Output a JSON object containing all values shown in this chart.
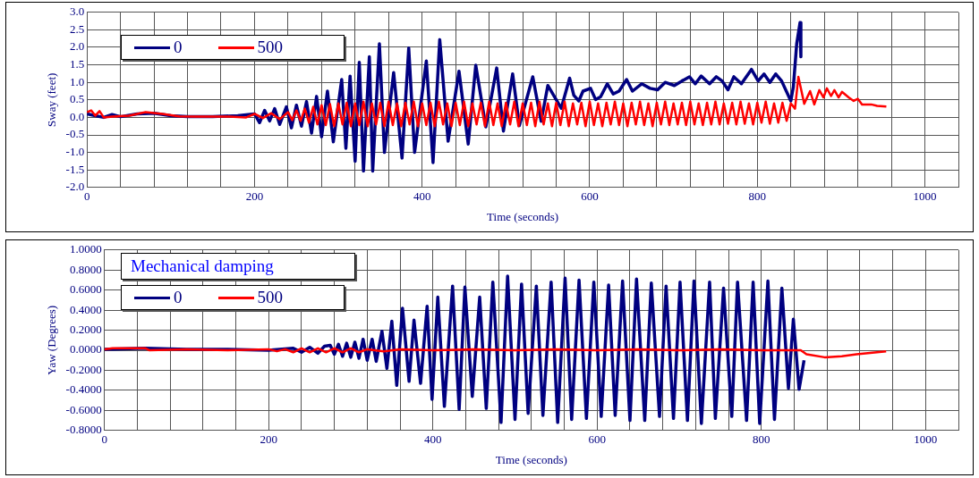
{
  "chart_data": [
    {
      "type": "line",
      "xlabel": "Time (seconds)",
      "ylabel": "Sway (feet)",
      "xlim": [
        0,
        1040
      ],
      "ylim": [
        -2,
        3
      ],
      "xticks": [
        0,
        {
          "value": 40,
          "label": null
        },
        {
          "value": 80,
          "label": null
        },
        {
          "value": 120,
          "label": null
        },
        {
          "value": 160,
          "label": null
        },
        200,
        {
          "value": 240,
          "label": null
        },
        {
          "value": 280,
          "label": null
        },
        {
          "value": 320,
          "label": null
        },
        {
          "value": 360,
          "label": null
        },
        400,
        {
          "value": 440,
          "label": null
        },
        {
          "value": 480,
          "label": null
        },
        {
          "value": 520,
          "label": null
        },
        {
          "value": 560,
          "label": null
        },
        600,
        {
          "value": 640,
          "label": null
        },
        {
          "value": 680,
          "label": null
        },
        {
          "value": 720,
          "label": null
        },
        {
          "value": 760,
          "label": null
        },
        800,
        {
          "value": 840,
          "label": null
        },
        {
          "value": 880,
          "label": null
        },
        {
          "value": 920,
          "label": null
        },
        {
          "value": 960,
          "label": null
        },
        1000,
        {
          "value": 1040,
          "label": null
        }
      ],
      "yticks": [
        {
          "value": -2,
          "label": "-2.0"
        },
        {
          "value": -1.5,
          "label": "-1.5"
        },
        {
          "value": -1,
          "label": "-1.0"
        },
        {
          "value": -0.5,
          "label": "-0.5"
        },
        {
          "value": 0,
          "label": "0.0"
        },
        {
          "value": 0.5,
          "label": "0.5"
        },
        {
          "value": 1,
          "label": "1.0"
        },
        {
          "value": 1.5,
          "label": "1.5"
        },
        {
          "value": 2,
          "label": "2.0"
        },
        {
          "value": 2.5,
          "label": "2.5"
        },
        {
          "value": 3,
          "label": "3.0"
        }
      ],
      "grid": true,
      "legend": "top left",
      "marker": "none",
      "line_style": "solid",
      "series": [
        {
          "name": "0",
          "color": "#000080",
          "x": [
            0,
            10,
            20,
            30,
            40,
            60,
            80,
            100,
            120,
            150,
            180,
            200,
            206,
            212,
            218,
            224,
            230,
            238,
            244,
            250,
            256,
            262,
            268,
            274,
            280,
            287,
            294,
            304,
            309,
            314,
            320,
            325,
            330,
            337,
            341,
            349,
            355,
            366,
            376,
            384,
            391,
            405,
            413,
            421,
            431,
            444,
            455,
            464,
            476,
            489,
            497,
            508,
            516,
            532,
            542,
            550,
            566,
            576,
            581,
            587,
            592,
            601,
            607,
            613,
            621,
            628,
            635,
            644,
            651,
            662,
            672,
            681,
            690,
            701,
            710,
            719,
            726,
            733,
            743,
            751,
            758,
            765,
            772,
            781,
            793,
            801,
            808,
            815,
            822,
            829,
            840,
            843,
            847,
            851,
            852
          ],
          "values": [
            0.1,
            0.05,
            0.0,
            0.08,
            0.02,
            0.1,
            0.12,
            0.05,
            0.02,
            0.02,
            0.05,
            0.1,
            -0.15,
            0.2,
            -0.1,
            0.25,
            -0.2,
            0.3,
            -0.3,
            0.35,
            -0.25,
            0.45,
            -0.45,
            0.6,
            -0.55,
            0.75,
            -0.7,
            1.08,
            -0.88,
            1.18,
            -1.25,
            1.57,
            -1.53,
            1.73,
            -1.53,
            2.1,
            -1.0,
            1.28,
            -1.16,
            1.98,
            -1.0,
            1.61,
            -1.29,
            2.22,
            -0.68,
            1.32,
            -0.76,
            1.49,
            -0.27,
            1.41,
            -0.39,
            1.24,
            -0.23,
            1.16,
            -0.11,
            0.91,
            0.26,
            1.12,
            0.63,
            0.47,
            0.75,
            0.83,
            0.51,
            0.59,
            0.96,
            0.67,
            0.75,
            1.08,
            0.75,
            0.96,
            0.83,
            0.79,
            1.0,
            0.91,
            1.04,
            1.16,
            0.96,
            1.18,
            0.96,
            1.16,
            1.04,
            0.79,
            1.16,
            0.96,
            1.37,
            1.04,
            1.24,
            1.0,
            1.24,
            1.04,
            0.47,
            0.87,
            2.1,
            2.71,
            1.73
          ]
        },
        {
          "name": "500",
          "color": "#ff0000",
          "x": [
            0,
            5,
            10,
            15,
            20,
            30,
            50,
            70,
            90,
            110,
            130,
            150,
            170,
            190,
            200,
            210,
            220,
            230,
            240,
            245,
            250,
            255,
            260,
            265,
            270,
            275,
            280,
            285,
            290,
            295,
            300,
            305,
            310,
            315,
            320,
            325,
            330,
            335,
            340,
            345,
            350,
            355,
            360,
            365,
            370,
            375,
            380,
            385,
            390,
            395,
            400,
            405,
            410,
            415,
            420,
            425,
            430,
            435,
            440,
            445,
            450,
            455,
            460,
            465,
            470,
            475,
            480,
            485,
            490,
            495,
            500,
            505,
            510,
            515,
            520,
            525,
            530,
            535,
            540,
            545,
            550,
            555,
            560,
            565,
            570,
            575,
            580,
            585,
            590,
            595,
            600,
            605,
            610,
            615,
            620,
            625,
            630,
            635,
            640,
            645,
            650,
            655,
            660,
            665,
            670,
            675,
            680,
            685,
            690,
            695,
            700,
            705,
            710,
            715,
            720,
            725,
            730,
            735,
            740,
            745,
            750,
            755,
            760,
            765,
            770,
            775,
            780,
            785,
            790,
            795,
            800,
            805,
            810,
            815,
            820,
            825,
            830,
            835,
            840,
            845,
            849,
            856,
            863,
            868,
            874,
            879,
            883,
            888,
            892,
            897,
            901,
            909,
            915,
            920,
            925,
            936,
            943,
            954
          ],
          "values": [
            0.15,
            0.2,
            0.05,
            0.18,
            0.0,
            0.02,
            0.05,
            0.15,
            0.1,
            0.03,
            0.02,
            0.02,
            0.02,
            0.0,
            0.1,
            -0.02,
            0.12,
            -0.05,
            0.15,
            -0.08,
            0.2,
            -0.1,
            0.25,
            -0.15,
            0.3,
            -0.2,
            0.35,
            -0.22,
            0.38,
            -0.25,
            0.4,
            -0.2,
            0.42,
            -0.25,
            0.4,
            -0.22,
            0.45,
            -0.25,
            0.4,
            -0.2,
            0.42,
            -0.25,
            0.45,
            -0.22,
            0.4,
            -0.25,
            0.42,
            -0.2,
            0.45,
            -0.25,
            0.4,
            -0.22,
            0.42,
            -0.25,
            0.45,
            -0.2,
            0.4,
            -0.25,
            0.42,
            -0.22,
            0.45,
            -0.25,
            0.4,
            -0.2,
            0.42,
            -0.25,
            0.45,
            -0.22,
            0.4,
            -0.25,
            0.42,
            -0.2,
            0.45,
            -0.25,
            0.4,
            -0.22,
            0.42,
            -0.25,
            0.45,
            -0.2,
            0.4,
            -0.25,
            0.42,
            -0.22,
            0.45,
            -0.25,
            0.4,
            -0.2,
            0.42,
            -0.25,
            0.45,
            -0.22,
            0.4,
            -0.25,
            0.42,
            -0.2,
            0.45,
            -0.22,
            0.4,
            -0.25,
            0.42,
            -0.2,
            0.45,
            -0.22,
            0.4,
            -0.25,
            0.42,
            -0.2,
            0.45,
            -0.22,
            0.4,
            -0.2,
            0.42,
            -0.22,
            0.45,
            -0.2,
            0.4,
            -0.22,
            0.42,
            -0.2,
            0.45,
            -0.2,
            0.4,
            -0.18,
            0.42,
            -0.2,
            0.45,
            -0.18,
            0.4,
            -0.2,
            0.42,
            -0.15,
            0.45,
            -0.18,
            0.4,
            -0.15,
            0.42,
            -0.1,
            0.4,
            0.25,
            1.16,
            0.39,
            0.75,
            0.37,
            0.78,
            0.57,
            0.83,
            0.61,
            0.78,
            0.57,
            0.73,
            0.57,
            0.47,
            0.53,
            0.37,
            0.37,
            0.33,
            0.31
          ]
        }
      ]
    },
    {
      "type": "line",
      "xlabel": "Time (seconds)",
      "ylabel": "Yaw (Degrees)",
      "legend_title": "Mechanical damping",
      "xlim": [
        0,
        1040
      ],
      "ylim": [
        -0.8,
        1
      ],
      "xticks": [
        0,
        {
          "value": 40,
          "label": null
        },
        {
          "value": 80,
          "label": null
        },
        {
          "value": 120,
          "label": null
        },
        {
          "value": 160,
          "label": null
        },
        200,
        {
          "value": 240,
          "label": null
        },
        {
          "value": 280,
          "label": null
        },
        {
          "value": 320,
          "label": null
        },
        {
          "value": 360,
          "label": null
        },
        400,
        {
          "value": 440,
          "label": null
        },
        {
          "value": 480,
          "label": null
        },
        {
          "value": 520,
          "label": null
        },
        {
          "value": 560,
          "label": null
        },
        600,
        {
          "value": 640,
          "label": null
        },
        {
          "value": 680,
          "label": null
        },
        {
          "value": 720,
          "label": null
        },
        {
          "value": 760,
          "label": null
        },
        800,
        {
          "value": 840,
          "label": null
        },
        {
          "value": 880,
          "label": null
        },
        {
          "value": 920,
          "label": null
        },
        {
          "value": 960,
          "label": null
        },
        1000,
        {
          "value": 1040,
          "label": null
        }
      ],
      "yticks": [
        {
          "value": -0.8,
          "label": "-0.8000"
        },
        {
          "value": -0.6,
          "label": "-0.6000"
        },
        {
          "value": -0.4,
          "label": "-0.4000"
        },
        {
          "value": -0.2,
          "label": "-0.2000"
        },
        {
          "value": 0,
          "label": "0.0000"
        },
        {
          "value": 0.2,
          "label": "0.2000"
        },
        {
          "value": 0.4,
          "label": "0.4000"
        },
        {
          "value": 0.6,
          "label": "0.6000"
        },
        {
          "value": 0.8,
          "label": "0.8000"
        },
        {
          "value": 1,
          "label": "1.0000"
        }
      ],
      "grid": true,
      "legend": "top left",
      "marker": "none",
      "line_style": "solid",
      "series": [
        {
          "name": "0",
          "color": "#000080",
          "x": [
            0,
            50,
            100,
            150,
            200,
            230,
            240,
            250,
            260,
            268,
            275,
            280,
            285,
            290,
            295,
            300,
            305,
            310,
            315,
            320,
            326,
            331,
            338,
            344,
            350,
            356,
            363,
            371,
            377,
            385,
            393,
            399,
            406,
            414,
            424,
            432,
            439,
            448,
            457,
            465,
            473,
            483,
            491,
            500,
            508,
            516,
            526,
            534,
            544,
            552,
            561,
            569,
            578,
            587,
            596,
            605,
            614,
            622,
            631,
            640,
            648,
            658,
            666,
            676,
            684,
            693,
            701,
            710,
            718,
            727,
            737,
            744,
            754,
            764,
            771,
            782,
            790,
            798,
            808,
            816,
            825,
            833,
            839,
            846,
            852
          ],
          "values": [
            0.01,
            0.02,
            0.01,
            0.01,
            0.0,
            0.02,
            -0.02,
            0.03,
            -0.03,
            0.04,
            0.05,
            -0.04,
            0.06,
            -0.06,
            0.07,
            -0.07,
            0.08,
            -0.08,
            0.11,
            -0.1,
            0.11,
            -0.11,
            0.19,
            -0.18,
            0.29,
            -0.35,
            0.42,
            -0.31,
            0.3,
            -0.33,
            0.44,
            -0.49,
            0.53,
            -0.56,
            0.64,
            -0.59,
            0.63,
            -0.46,
            0.53,
            -0.58,
            0.68,
            -0.72,
            0.74,
            -0.69,
            0.66,
            -0.63,
            0.64,
            -0.65,
            0.68,
            -0.72,
            0.72,
            -0.69,
            0.7,
            -0.68,
            0.68,
            -0.66,
            0.65,
            -0.65,
            0.69,
            -0.7,
            0.71,
            -0.7,
            0.67,
            -0.66,
            0.64,
            -0.68,
            0.68,
            -0.7,
            0.69,
            -0.73,
            0.68,
            -0.68,
            0.62,
            -0.66,
            0.68,
            -0.7,
            0.68,
            -0.73,
            0.69,
            -0.69,
            0.62,
            -0.38,
            0.31,
            -0.39,
            -0.1
          ]
        },
        {
          "name": "500",
          "color": "#ff0000",
          "x": [
            0,
            10,
            50,
            55,
            100,
            150,
            200,
            210,
            220,
            230,
            240,
            250,
            260,
            270,
            280,
            290,
            300,
            310,
            320,
            340,
            360,
            400,
            450,
            500,
            550,
            600,
            650,
            700,
            750,
            800,
            840,
            848,
            855,
            877,
            898,
            916,
            952
          ],
          "values": [
            0.01,
            0.02,
            0.02,
            0.0,
            0.01,
            0.0,
            0.01,
            -0.01,
            0.01,
            -0.02,
            0.02,
            -0.02,
            0.02,
            -0.02,
            0.02,
            -0.02,
            0.02,
            -0.02,
            0.01,
            -0.01,
            0.01,
            0.0,
            0.01,
            0.0,
            0.01,
            0.0,
            0.01,
            0.0,
            0.01,
            0.0,
            0.0,
            0.0,
            -0.04,
            -0.07,
            -0.06,
            -0.04,
            -0.01
          ]
        }
      ]
    }
  ]
}
